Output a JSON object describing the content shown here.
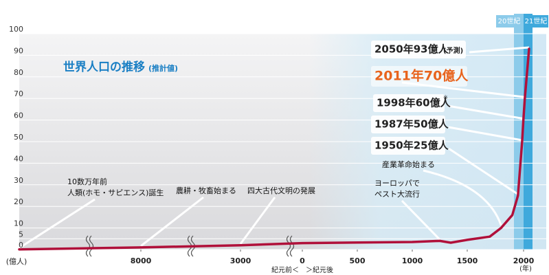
{
  "chart_data": {
    "type": "line",
    "title": "世界人口の推移",
    "subtitle": "(推計値)",
    "y_label": "(億人)",
    "x_label": "(年)",
    "era_label": "紀元前＜　＞紀元後",
    "century_labels": [
      "20世紀",
      "21世紀"
    ],
    "color": "#b0103a",
    "x": [
      -100000,
      -8000,
      -3000,
      0,
      1000,
      1250,
      1350,
      1500,
      1700,
      1800,
      1900,
      1950,
      1987,
      1998,
      2011,
      2050
    ],
    "values": [
      0.1,
      1,
      2,
      3,
      3.5,
      4,
      3.2,
      4.5,
      6,
      10,
      16,
      25,
      50,
      60,
      70,
      93
    ],
    "xlim": [
      -100000,
      2150
    ],
    "xticks": [
      {
        "value": -8000,
        "label": "8000"
      },
      {
        "value": -3000,
        "label": "3000"
      },
      0,
      500,
      1000,
      1500,
      2000
    ],
    "ylim": [
      0,
      100
    ],
    "yticks": [
      0,
      5,
      10,
      20,
      30,
      40,
      50,
      60,
      70,
      80,
      90,
      100
    ],
    "grid": true,
    "annotations": [
      [
        "2050年93億人",
        "(予測)"
      ],
      [
        "2011年70億人"
      ],
      [
        "1998年60億人",
        "※"
      ],
      [
        "1987年50億人"
      ],
      [
        "1950年25億人"
      ],
      [
        "産業革命始まる"
      ],
      [
        "ヨーロッパで",
        "ペスト大流行"
      ],
      [
        "四大古代文明の発展"
      ],
      [
        "農耕・牧畜始まる"
      ],
      [
        "10数万年前",
        "人類(ホモ・サピエンス)誕生"
      ]
    ]
  }
}
